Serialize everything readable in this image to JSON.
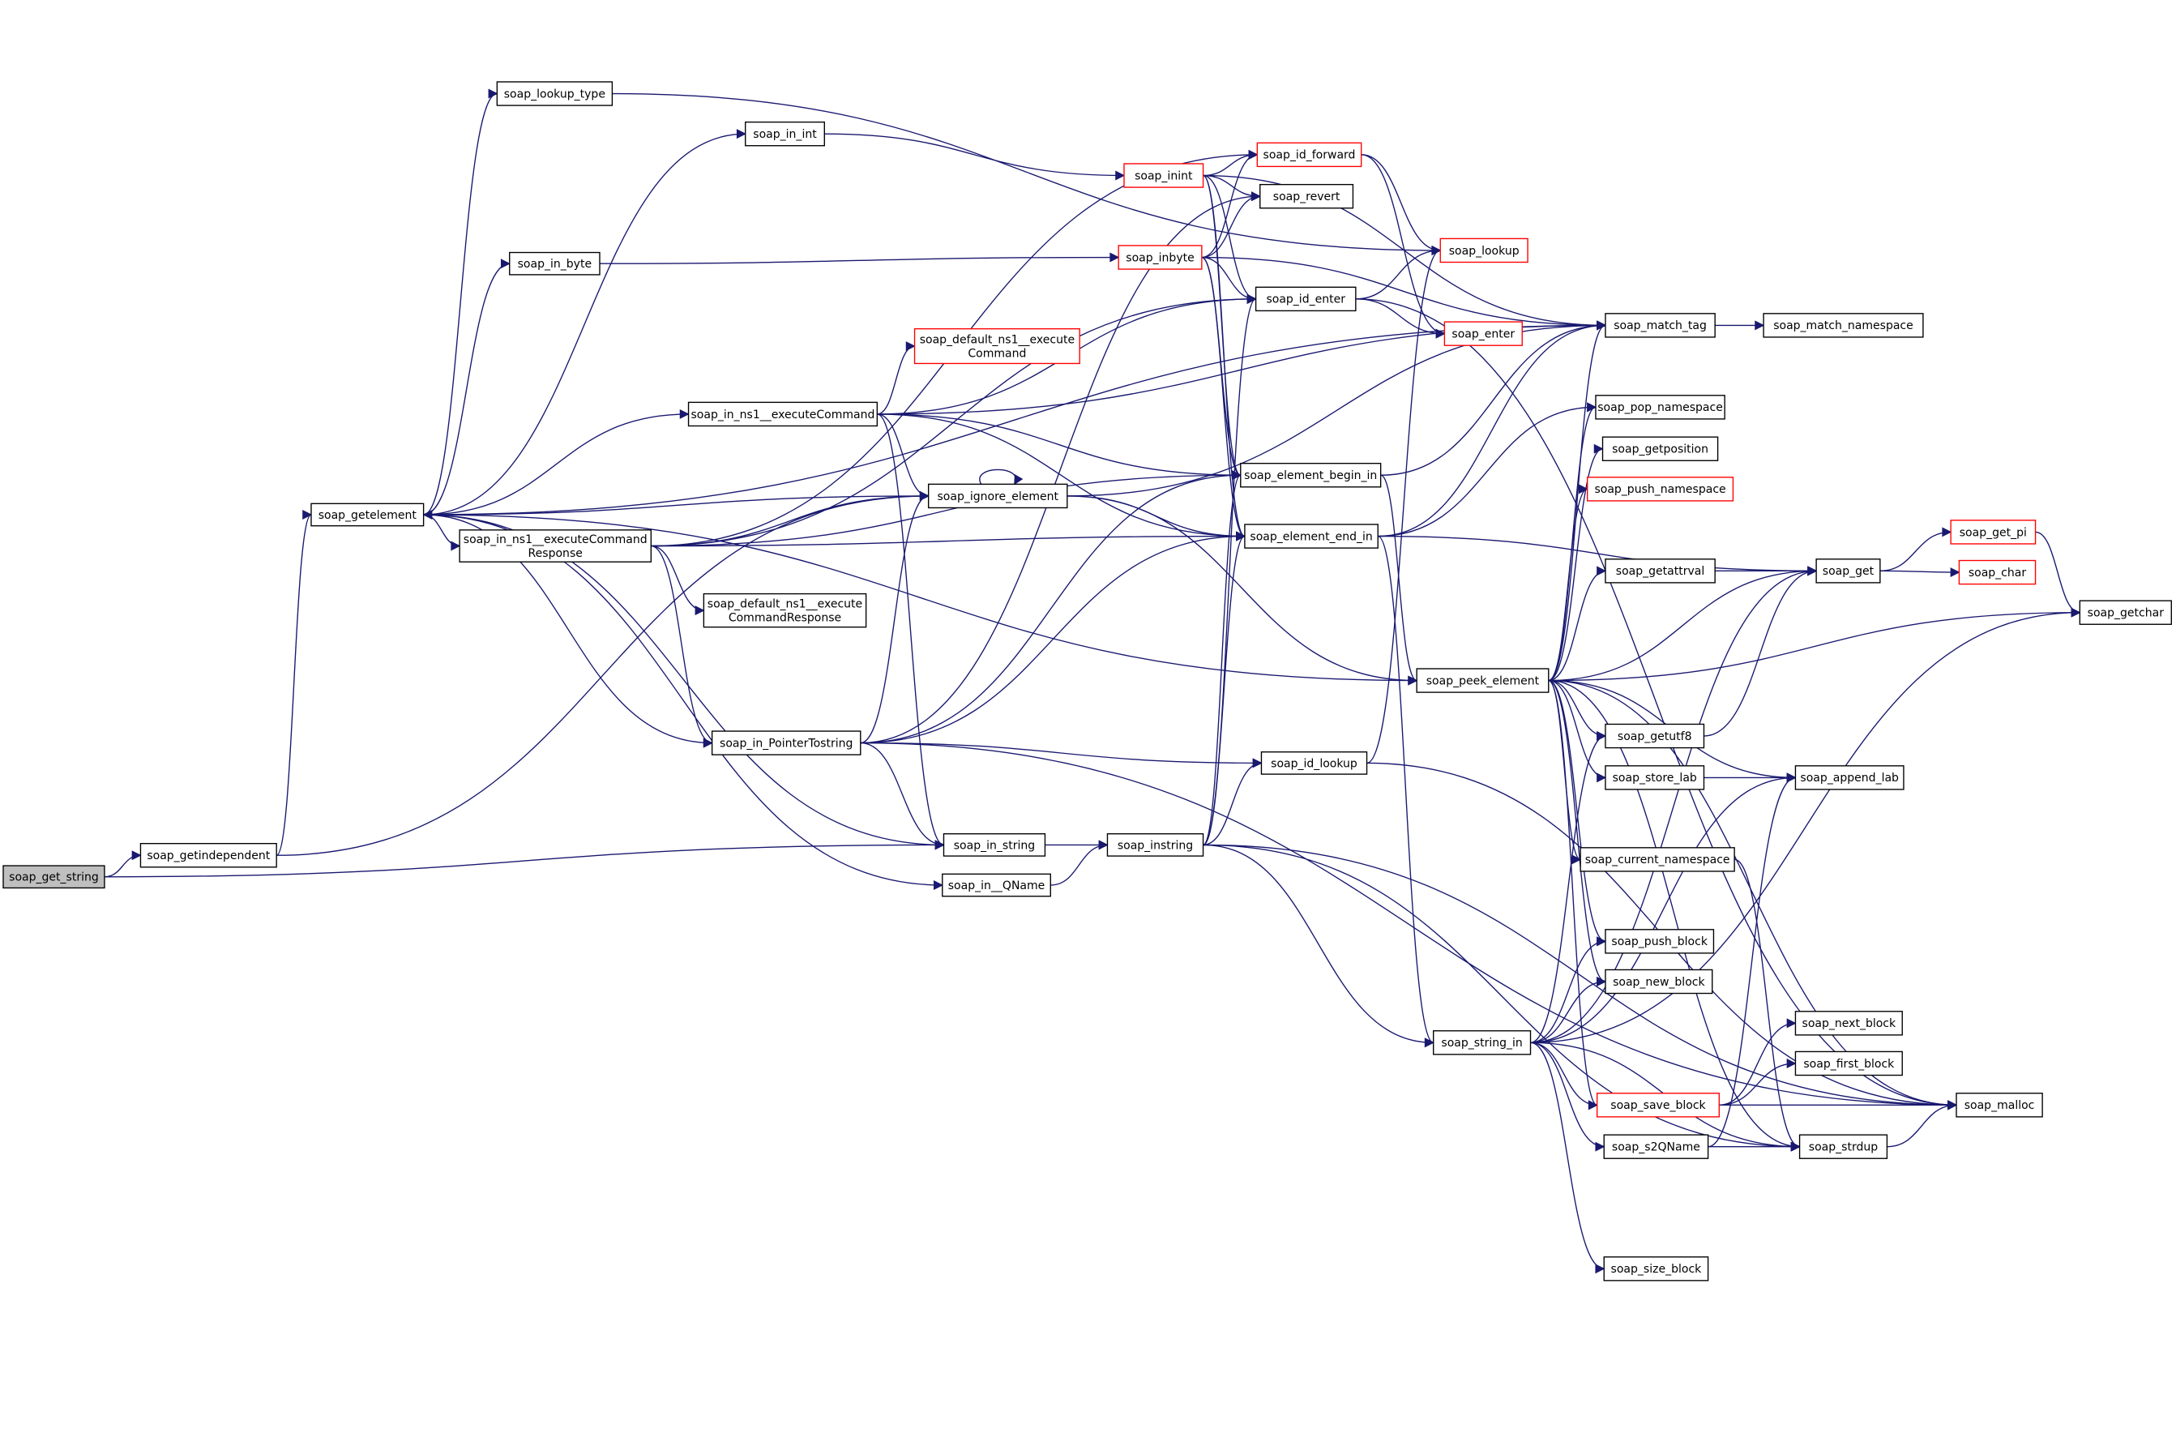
{
  "colors": {
    "edge": "#191970",
    "truncated_border": "#ff0000",
    "root_fill": "#bfbfbf",
    "node_border": "#000000"
  },
  "nodes": [
    {
      "id": "soap_get_string",
      "label": [
        "soap_get_string"
      ],
      "root": true
    },
    {
      "id": "soap_getindependent",
      "label": [
        "soap_getindependent"
      ]
    },
    {
      "id": "soap_getelement",
      "label": [
        "soap_getelement"
      ]
    },
    {
      "id": "soap_lookup_type",
      "label": [
        "soap_lookup_type"
      ]
    },
    {
      "id": "soap_in_int",
      "label": [
        "soap_in_int"
      ]
    },
    {
      "id": "soap_in_byte",
      "label": [
        "soap_in_byte"
      ]
    },
    {
      "id": "soap_in_ns1__executeCommand",
      "label": [
        "soap_in_ns1__executeCommand"
      ]
    },
    {
      "id": "soap_in_ns1__executeCommandResponse",
      "label": [
        "soap_in_ns1__executeCommand",
        "Response"
      ]
    },
    {
      "id": "soap_default_ns1__executeCommandResponse",
      "label": [
        "soap_default_ns1__execute",
        "CommandResponse"
      ]
    },
    {
      "id": "soap_default_ns1__executeCommand",
      "label": [
        "soap_default_ns1__execute",
        "Command"
      ],
      "truncated": true
    },
    {
      "id": "soap_ignore_element",
      "label": [
        "soap_ignore_element"
      ]
    },
    {
      "id": "soap_in_PointerTostring",
      "label": [
        "soap_in_PointerTostring"
      ]
    },
    {
      "id": "soap_in_string",
      "label": [
        "soap_in_string"
      ]
    },
    {
      "id": "soap_in__QName",
      "label": [
        "soap_in__QName"
      ]
    },
    {
      "id": "soap_instring",
      "label": [
        "soap_instring"
      ]
    },
    {
      "id": "soap_id_lookup",
      "label": [
        "soap_id_lookup"
      ]
    },
    {
      "id": "soap_inint",
      "label": [
        "soap_inint"
      ],
      "truncated": true
    },
    {
      "id": "soap_id_forward",
      "label": [
        "soap_id_forward"
      ],
      "truncated": true
    },
    {
      "id": "soap_revert",
      "label": [
        "soap_revert"
      ]
    },
    {
      "id": "soap_inbyte",
      "label": [
        "soap_inbyte"
      ],
      "truncated": true
    },
    {
      "id": "soap_id_enter",
      "label": [
        "soap_id_enter"
      ]
    },
    {
      "id": "soap_element_begin_in",
      "label": [
        "soap_element_begin_in"
      ]
    },
    {
      "id": "soap_element_end_in",
      "label": [
        "soap_element_end_in"
      ]
    },
    {
      "id": "soap_lookup",
      "label": [
        "soap_lookup"
      ],
      "truncated": true
    },
    {
      "id": "soap_enter",
      "label": [
        "soap_enter"
      ],
      "truncated": true
    },
    {
      "id": "soap_match_tag",
      "label": [
        "soap_match_tag"
      ]
    },
    {
      "id": "soap_match_namespace",
      "label": [
        "soap_match_namespace"
      ]
    },
    {
      "id": "soap_pop_namespace",
      "label": [
        "soap_pop_namespace"
      ]
    },
    {
      "id": "soap_getposition",
      "label": [
        "soap_getposition"
      ]
    },
    {
      "id": "soap_push_namespace",
      "label": [
        "soap_push_namespace"
      ],
      "truncated": true
    },
    {
      "id": "soap_getattrval",
      "label": [
        "soap_getattrval"
      ]
    },
    {
      "id": "soap_peek_element",
      "label": [
        "soap_peek_element"
      ]
    },
    {
      "id": "soap_getutf8",
      "label": [
        "soap_getutf8"
      ]
    },
    {
      "id": "soap_store_lab",
      "label": [
        "soap_store_lab"
      ]
    },
    {
      "id": "soap_current_namespace",
      "label": [
        "soap_current_namespace"
      ]
    },
    {
      "id": "soap_push_block",
      "label": [
        "soap_push_block"
      ]
    },
    {
      "id": "soap_new_block",
      "label": [
        "soap_new_block"
      ]
    },
    {
      "id": "soap_string_in",
      "label": [
        "soap_string_in"
      ]
    },
    {
      "id": "soap_save_block",
      "label": [
        "soap_save_block"
      ],
      "truncated": true
    },
    {
      "id": "soap_s2QName",
      "label": [
        "soap_s2QName"
      ]
    },
    {
      "id": "soap_size_block",
      "label": [
        "soap_size_block"
      ]
    },
    {
      "id": "soap_get",
      "label": [
        "soap_get"
      ]
    },
    {
      "id": "soap_get_pi",
      "label": [
        "soap_get_pi"
      ],
      "truncated": true
    },
    {
      "id": "soap_char",
      "label": [
        "soap_char"
      ],
      "truncated": true
    },
    {
      "id": "soap_getchar",
      "label": [
        "soap_getchar"
      ]
    },
    {
      "id": "soap_append_lab",
      "label": [
        "soap_append_lab"
      ]
    },
    {
      "id": "soap_next_block",
      "label": [
        "soap_next_block"
      ]
    },
    {
      "id": "soap_first_block",
      "label": [
        "soap_first_block"
      ]
    },
    {
      "id": "soap_strdup",
      "label": [
        "soap_strdup"
      ]
    },
    {
      "id": "soap_malloc",
      "label": [
        "soap_malloc"
      ]
    }
  ],
  "edges": [
    [
      "soap_get_string",
      "soap_getindependent"
    ],
    [
      "soap_get_string",
      "soap_in_string"
    ],
    [
      "soap_getindependent",
      "soap_getelement"
    ],
    [
      "soap_getindependent",
      "soap_ignore_element"
    ],
    [
      "soap_getelement",
      "soap_lookup_type"
    ],
    [
      "soap_getelement",
      "soap_in_int"
    ],
    [
      "soap_getelement",
      "soap_in_byte"
    ],
    [
      "soap_getelement",
      "soap_in_ns1__executeCommand"
    ],
    [
      "soap_getelement",
      "soap_in_ns1__executeCommandResponse"
    ],
    [
      "soap_getelement",
      "soap_in_PointerTostring"
    ],
    [
      "soap_getelement",
      "soap_in_string"
    ],
    [
      "soap_getelement",
      "soap_in__QName"
    ],
    [
      "soap_getelement",
      "soap_peek_element"
    ],
    [
      "soap_getelement",
      "soap_match_tag"
    ],
    [
      "soap_lookup_type",
      "soap_lookup"
    ],
    [
      "soap_in_int",
      "soap_inint"
    ],
    [
      "soap_in_byte",
      "soap_inbyte"
    ],
    [
      "soap_in_ns1__executeCommand",
      "soap_default_ns1__executeCommand"
    ],
    [
      "soap_in_ns1__executeCommand",
      "soap_ignore_element"
    ],
    [
      "soap_in_ns1__executeCommand",
      "soap_element_begin_in"
    ],
    [
      "soap_in_ns1__executeCommand",
      "soap_element_end_in"
    ],
    [
      "soap_in_ns1__executeCommand",
      "soap_id_enter"
    ],
    [
      "soap_in_ns1__executeCommand",
      "soap_match_tag"
    ],
    [
      "soap_in_ns1__executeCommand",
      "soap_in_string"
    ],
    [
      "soap_in_ns1__executeCommandResponse",
      "soap_default_ns1__executeCommandResponse"
    ],
    [
      "soap_in_ns1__executeCommandResponse",
      "soap_ignore_element"
    ],
    [
      "soap_in_ns1__executeCommandResponse",
      "soap_element_begin_in"
    ],
    [
      "soap_in_ns1__executeCommandResponse",
      "soap_element_end_in"
    ],
    [
      "soap_in_ns1__executeCommandResponse",
      "soap_in_PointerTostring"
    ],
    [
      "soap_in_ns1__executeCommandResponse",
      "soap_id_enter"
    ],
    [
      "soap_in_ns1__executeCommandResponse",
      "soap_id_forward"
    ],
    [
      "soap_ignore_element",
      "soap_ignore_element"
    ],
    [
      "soap_ignore_element",
      "soap_getelement"
    ],
    [
      "soap_ignore_element",
      "soap_match_tag"
    ],
    [
      "soap_ignore_element",
      "soap_element_end_in"
    ],
    [
      "soap_ignore_element",
      "soap_peek_element"
    ],
    [
      "soap_in_PointerTostring",
      "soap_in_string"
    ],
    [
      "soap_in_PointerTostring",
      "soap_element_begin_in"
    ],
    [
      "soap_in_PointerTostring",
      "soap_element_end_in"
    ],
    [
      "soap_in_PointerTostring",
      "soap_id_lookup"
    ],
    [
      "soap_in_PointerTostring",
      "soap_ignore_element"
    ],
    [
      "soap_in_PointerTostring",
      "soap_revert"
    ],
    [
      "soap_in_PointerTostring",
      "soap_malloc"
    ],
    [
      "soap_in_string",
      "soap_instring"
    ],
    [
      "soap_in__QName",
      "soap_instring"
    ],
    [
      "soap_instring",
      "soap_id_lookup"
    ],
    [
      "soap_instring",
      "soap_element_begin_in"
    ],
    [
      "soap_instring",
      "soap_element_end_in"
    ],
    [
      "soap_instring",
      "soap_id_enter"
    ],
    [
      "soap_instring",
      "soap_string_in"
    ],
    [
      "soap_instring",
      "soap_strdup"
    ],
    [
      "soap_instring",
      "soap_malloc"
    ],
    [
      "soap_inint",
      "soap_id_forward"
    ],
    [
      "soap_inint",
      "soap_revert"
    ],
    [
      "soap_inint",
      "soap_id_enter"
    ],
    [
      "soap_inint",
      "soap_element_begin_in"
    ],
    [
      "soap_inint",
      "soap_element_end_in"
    ],
    [
      "soap_inint",
      "soap_match_tag"
    ],
    [
      "soap_inbyte",
      "soap_id_forward"
    ],
    [
      "soap_inbyte",
      "soap_revert"
    ],
    [
      "soap_inbyte",
      "soap_id_enter"
    ],
    [
      "soap_inbyte",
      "soap_element_begin_in"
    ],
    [
      "soap_inbyte",
      "soap_element_end_in"
    ],
    [
      "soap_inbyte",
      "soap_match_tag"
    ],
    [
      "soap_id_forward",
      "soap_lookup"
    ],
    [
      "soap_id_forward",
      "soap_enter"
    ],
    [
      "soap_id_enter",
      "soap_lookup"
    ],
    [
      "soap_id_enter",
      "soap_enter"
    ],
    [
      "soap_id_enter",
      "soap_malloc"
    ],
    [
      "soap_id_lookup",
      "soap_lookup"
    ],
    [
      "soap_id_lookup",
      "soap_malloc"
    ],
    [
      "soap_element_begin_in",
      "soap_match_tag"
    ],
    [
      "soap_element_begin_in",
      "soap_peek_element"
    ],
    [
      "soap_element_end_in",
      "soap_match_tag"
    ],
    [
      "soap_element_end_in",
      "soap_pop_namespace"
    ],
    [
      "soap_element_end_in",
      "soap_string_in"
    ],
    [
      "soap_element_end_in",
      "soap_get"
    ],
    [
      "soap_match_tag",
      "soap_match_namespace"
    ],
    [
      "soap_peek_element",
      "soap_match_tag"
    ],
    [
      "soap_peek_element",
      "soap_pop_namespace"
    ],
    [
      "soap_peek_element",
      "soap_getposition"
    ],
    [
      "soap_peek_element",
      "soap_push_namespace"
    ],
    [
      "soap_peek_element",
      "soap_getattrval"
    ],
    [
      "soap_peek_element",
      "soap_get"
    ],
    [
      "soap_peek_element",
      "soap_getchar"
    ],
    [
      "soap_peek_element",
      "soap_getutf8"
    ],
    [
      "soap_peek_element",
      "soap_store_lab"
    ],
    [
      "soap_peek_element",
      "soap_append_lab"
    ],
    [
      "soap_peek_element",
      "soap_current_namespace"
    ],
    [
      "soap_peek_element",
      "soap_push_block"
    ],
    [
      "soap_peek_element",
      "soap_new_block"
    ],
    [
      "soap_peek_element",
      "soap_save_block"
    ],
    [
      "soap_peek_element",
      "soap_strdup"
    ],
    [
      "soap_peek_element",
      "soap_malloc"
    ],
    [
      "soap_getattrval",
      "soap_get"
    ],
    [
      "soap_getutf8",
      "soap_get"
    ],
    [
      "soap_store_lab",
      "soap_append_lab"
    ],
    [
      "soap_current_namespace",
      "soap_strdup"
    ],
    [
      "soap_string_in",
      "soap_push_block"
    ],
    [
      "soap_string_in",
      "soap_new_block"
    ],
    [
      "soap_string_in",
      "soap_save_block"
    ],
    [
      "soap_string_in",
      "soap_s2QName"
    ],
    [
      "soap_string_in",
      "soap_size_block"
    ],
    [
      "soap_string_in",
      "soap_strdup"
    ],
    [
      "soap_string_in",
      "soap_getutf8"
    ],
    [
      "soap_string_in",
      "soap_append_lab"
    ],
    [
      "soap_string_in",
      "soap_get"
    ],
    [
      "soap_string_in",
      "soap_getchar"
    ],
    [
      "soap_save_block",
      "soap_next_block"
    ],
    [
      "soap_save_block",
      "soap_first_block"
    ],
    [
      "soap_save_block",
      "soap_malloc"
    ],
    [
      "soap_s2QName",
      "soap_strdup"
    ],
    [
      "soap_s2QName",
      "soap_append_lab"
    ],
    [
      "soap_strdup",
      "soap_malloc"
    ],
    [
      "soap_get",
      "soap_get_pi"
    ],
    [
      "soap_get",
      "soap_char"
    ],
    [
      "soap_get_pi",
      "soap_getchar"
    ]
  ]
}
